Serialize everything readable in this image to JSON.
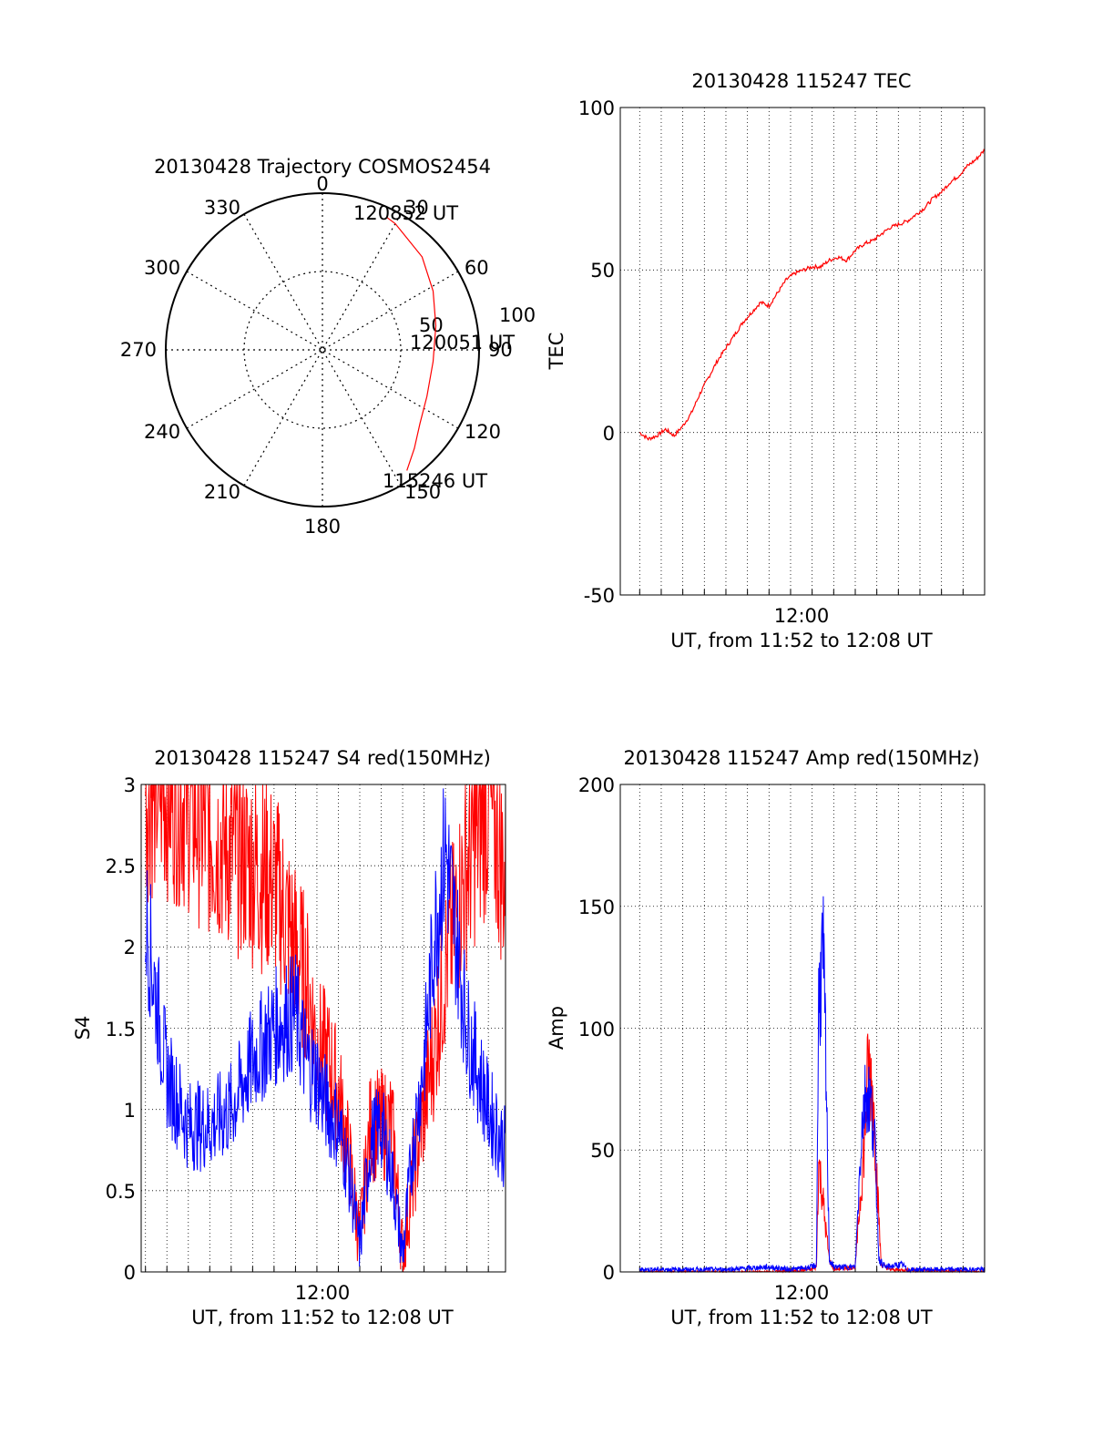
{
  "colors": {
    "red": "#ff0000",
    "blue": "#0000ff",
    "axis": "#000000",
    "grid": "#000000"
  },
  "polar": {
    "title": "20130428 Trajectory COSMOS2454",
    "azimuth_labels": [
      "0",
      "30",
      "60",
      "90",
      "120",
      "150",
      "180",
      "210",
      "240",
      "270",
      "300",
      "330"
    ],
    "radial_labels": [
      "50",
      "100"
    ],
    "point_labels": [
      "120852 UT",
      "120051 UT",
      "115246 UT"
    ],
    "chart_data": {
      "type": "scatter",
      "coordinate": "polar",
      "note_axes": "azimuth degrees clockwise from 0 at top; radius = zenith angle 0-100",
      "series": [
        {
          "color": "#ff0000",
          "points": [
            {
              "az": 145,
              "r": 94,
              "label": "115246 UT"
            },
            {
              "az": 137,
              "r": 86
            },
            {
              "az": 127,
              "r": 78
            },
            {
              "az": 114,
              "r": 73
            },
            {
              "az": 96,
              "r": 71,
              "label": "120051 UT"
            },
            {
              "az": 78,
              "r": 74
            },
            {
              "az": 62,
              "r": 80
            },
            {
              "az": 47,
              "r": 87
            },
            {
              "az": 30,
              "r": 93
            },
            {
              "az": 26,
              "r": 94,
              "label": "120852 UT"
            }
          ]
        }
      ]
    }
  },
  "tec": {
    "title": "20130428 115247 TEC",
    "ylabel": "TEC",
    "xlabel": "UT, from 11:52 to 12:08 UT",
    "xtick": "12:00",
    "yticks": [
      "100",
      "50",
      "0",
      "-50"
    ],
    "chart_data": {
      "type": "line",
      "x_range_minutes": [
        -8.9,
        8.0
      ],
      "ylim": [
        -50,
        100
      ],
      "series": [
        {
          "color": "#ff0000",
          "x": [
            -8.0,
            -7.6,
            -7.2,
            -6.8,
            -6.4,
            -6.0,
            -5.6,
            -5.2,
            -4.8,
            -4.4,
            -4.0,
            -3.6,
            -3.2,
            -2.8,
            -2.4,
            -2.0,
            -1.6,
            -1.2,
            -0.8,
            -0.4,
            0.0,
            0.4,
            0.8,
            1.2,
            1.6,
            2.0,
            2.4,
            2.8,
            3.2,
            3.6,
            4.0,
            4.4,
            4.8,
            5.2,
            5.6,
            6.0,
            6.4,
            6.8,
            7.2,
            7.6,
            8.0
          ],
          "values": [
            0,
            -2,
            -1,
            1,
            -1,
            2,
            6,
            12,
            17,
            22,
            26,
            30,
            34,
            37,
            40,
            39,
            43,
            47,
            49,
            50,
            51,
            51,
            53,
            54,
            53,
            56,
            58,
            59,
            61,
            63,
            64,
            65,
            67,
            69,
            72,
            74,
            77,
            79,
            82,
            84,
            87
          ]
        }
      ]
    }
  },
  "s4": {
    "title": "20130428 115247 S4 red(150MHz)",
    "ylabel": "S4",
    "xlabel": "UT, from 11:52 to 12:08 UT",
    "xtick": "12:00",
    "yticks": [
      "3",
      "2.5",
      "2",
      "1.5",
      "1",
      "0.5",
      "0"
    ],
    "chart_data": {
      "type": "line",
      "x_range_minutes": [
        -8.2,
        8.8
      ],
      "ylim": [
        0,
        3
      ],
      "series": [
        {
          "color": "#ff0000",
          "x": [
            -8.0,
            -7.0,
            -6.0,
            -5.0,
            -4.0,
            -3.0,
            -2.0,
            -1.0,
            -0.5,
            0.0,
            0.5,
            1.0,
            1.5,
            2.0,
            2.5,
            3.0,
            3.5,
            4.0,
            4.5,
            5.0,
            5.5,
            6.0,
            7.0,
            8.0,
            8.8
          ],
          "values": [
            3.0,
            3.0,
            2.9,
            2.7,
            2.6,
            2.5,
            2.4,
            2.0,
            1.8,
            1.4,
            1.3,
            1.1,
            0.7,
            0.2,
            0.9,
            0.9,
            0.9,
            0.1,
            0.6,
            1.0,
            1.4,
            1.9,
            2.5,
            2.9,
            2.4
          ]
        },
        {
          "color": "#0000ff",
          "x": [
            -8.0,
            -7.0,
            -6.0,
            -5.0,
            -4.0,
            -3.0,
            -2.0,
            -1.0,
            -0.5,
            0.0,
            0.5,
            1.0,
            1.5,
            2.0,
            2.5,
            3.0,
            3.5,
            4.0,
            4.5,
            5.0,
            5.5,
            6.0,
            7.0,
            8.0,
            8.8
          ],
          "values": [
            2.2,
            1.2,
            0.9,
            0.9,
            1.0,
            1.3,
            1.5,
            1.6,
            1.3,
            1.2,
            1.0,
            0.9,
            0.6,
            0.15,
            0.8,
            0.9,
            0.6,
            0.1,
            0.8,
            1.3,
            2.1,
            2.6,
            1.5,
            1.0,
            0.75
          ]
        }
      ]
    }
  },
  "amp": {
    "title": "20130428 115247 Amp red(150MHz)",
    "ylabel": "Amp",
    "xlabel": "UT, from 11:52 to 12:08 UT",
    "xtick": "12:00",
    "yticks": [
      "200",
      "150",
      "100",
      "50",
      "0"
    ],
    "chart_data": {
      "type": "line",
      "x_range_minutes": [
        -8.9,
        8.0
      ],
      "ylim": [
        0,
        200
      ],
      "series": [
        {
          "color": "#ff0000",
          "x": [
            -8.0,
            -2.0,
            0.0,
            0.2,
            0.3,
            0.5,
            0.6,
            0.8,
            1.0,
            2.0,
            2.4,
            2.6,
            2.8,
            3.0,
            3.2,
            3.6,
            8.0
          ],
          "values": [
            0,
            0,
            1,
            2,
            45,
            30,
            20,
            5,
            1,
            2,
            50,
            85,
            75,
            40,
            3,
            1,
            0
          ]
        },
        {
          "color": "#0000ff",
          "x": [
            -8.0,
            -6.0,
            -4.0,
            -2.0,
            -1.0,
            0.0,
            0.2,
            0.3,
            0.4,
            0.5,
            0.6,
            0.8,
            1.0,
            2.0,
            2.3,
            2.5,
            2.7,
            2.9,
            3.1,
            3.4,
            4.2,
            4.4,
            8.0
          ],
          "values": [
            1,
            1,
            1,
            2,
            1,
            2,
            3,
            110,
            120,
            130,
            100,
            5,
            2,
            2,
            60,
            75,
            70,
            55,
            5,
            2,
            3,
            1,
            1
          ]
        }
      ]
    }
  }
}
